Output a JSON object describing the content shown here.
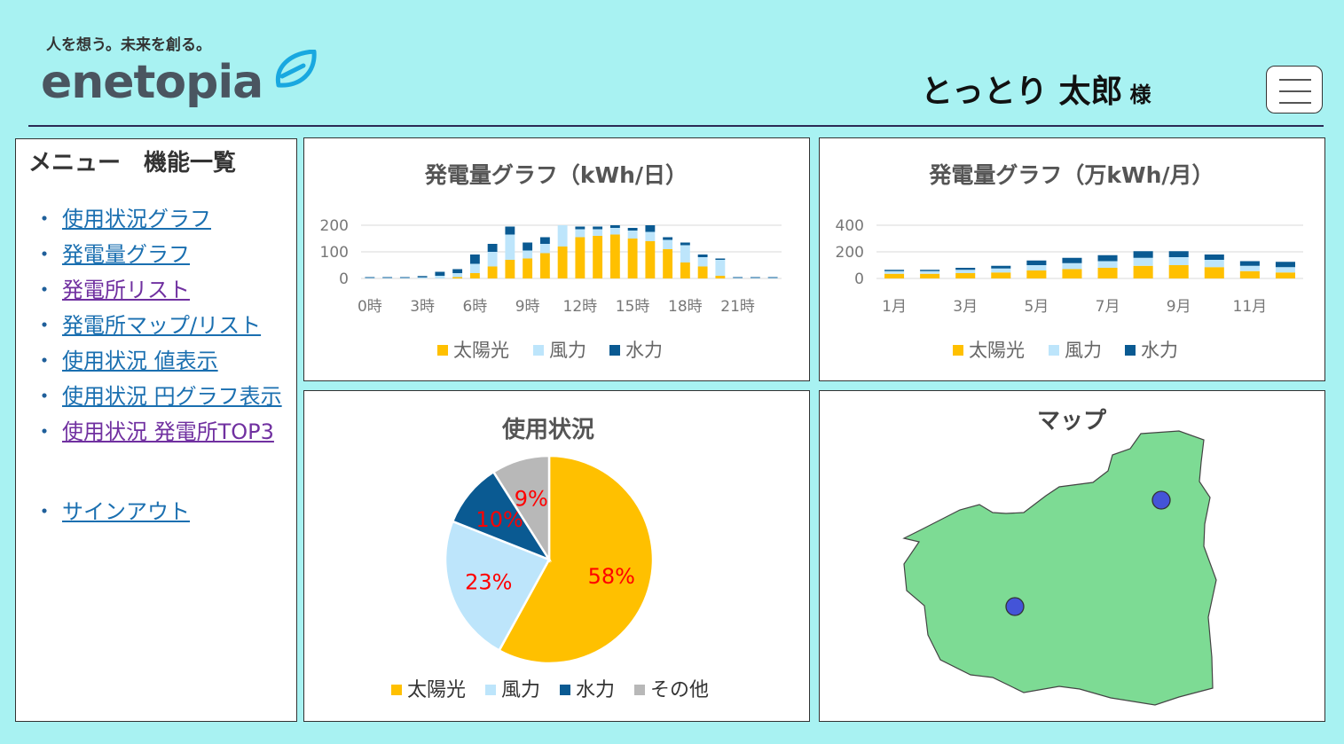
{
  "header": {
    "tagline": "人を想う。未来を創る。",
    "logo": "enetopia",
    "user_name": "とっとり 太郎",
    "user_suffix": "様",
    "menu_icon": "hamburger-icon"
  },
  "sidebar": {
    "title": "メニュー　機能一覧",
    "bullet": "・",
    "items": [
      {
        "label": "使用状況グラフ",
        "color": "#1a6fb0"
      },
      {
        "label": "発電量グラフ",
        "color": "#1a6fb0"
      },
      {
        "label": "発電所リスト",
        "color": "#7030a0"
      },
      {
        "label": "発電所マップ/リスト",
        "color": "#1a6fb0"
      },
      {
        "label": "使用状況 値表示",
        "color": "#1a6fb0"
      },
      {
        "label": "使用状況 円グラフ表示",
        "color": "#1a6fb0"
      },
      {
        "label": "使用状況 発電所TOP3",
        "color": "#7030a0"
      }
    ],
    "signout": "サインアウト"
  },
  "colors": {
    "solar": "#ffc000",
    "wind": "#bde5fb",
    "hydro": "#0a5a92",
    "other": "#b8b8b8",
    "map_fill": "#7ddb94",
    "map_marker": "#4454d8",
    "pct": "#ff0000"
  },
  "chart_data": [
    {
      "type": "bar",
      "stacked": true,
      "title": "発電量グラフ（kWh/日）",
      "categories": [
        "0時",
        "1時",
        "2時",
        "3時",
        "4時",
        "5時",
        "6時",
        "7時",
        "8時",
        "9時",
        "10時",
        "11時",
        "12時",
        "13時",
        "14時",
        "15時",
        "16時",
        "17時",
        "18時",
        "19時",
        "20時",
        "21時",
        "22時",
        "23時"
      ],
      "tick_labels": [
        "0時",
        "3時",
        "6時",
        "9時",
        "12時",
        "15時",
        "18時",
        "21時"
      ],
      "series": [
        {
          "name": "太陽光",
          "values": [
            0,
            0,
            0,
            0,
            0,
            5,
            20,
            45,
            70,
            75,
            95,
            120,
            155,
            160,
            165,
            150,
            140,
            110,
            60,
            45,
            10,
            0,
            0,
            0
          ]
        },
        {
          "name": "風力",
          "values": [
            2,
            2,
            2,
            4,
            10,
            15,
            35,
            55,
            95,
            30,
            35,
            80,
            30,
            25,
            25,
            30,
            35,
            35,
            65,
            35,
            60,
            2,
            2,
            2
          ]
        },
        {
          "name": "水力",
          "values": [
            3,
            3,
            3,
            5,
            15,
            15,
            35,
            30,
            30,
            30,
            25,
            0,
            10,
            10,
            10,
            10,
            25,
            10,
            10,
            10,
            5,
            3,
            3,
            3
          ]
        }
      ],
      "ylim": [
        0,
        200
      ],
      "yticks": [
        0,
        100,
        200
      ],
      "legend": "bottom",
      "grid": true
    },
    {
      "type": "bar",
      "stacked": true,
      "title": "発電量グラフ（万kWh/月）",
      "categories": [
        "1月",
        "2月",
        "3月",
        "4月",
        "5月",
        "6月",
        "7月",
        "8月",
        "9月",
        "10月",
        "11月",
        "12月"
      ],
      "tick_labels": [
        "1月",
        "3月",
        "5月",
        "7月",
        "9月",
        "11月"
      ],
      "series": [
        {
          "name": "太陽光",
          "values": [
            35,
            35,
            40,
            45,
            60,
            70,
            80,
            95,
            100,
            85,
            55,
            45
          ]
        },
        {
          "name": "風力",
          "values": [
            20,
            20,
            25,
            30,
            40,
            45,
            50,
            60,
            60,
            55,
            40,
            40
          ]
        },
        {
          "name": "水力",
          "values": [
            10,
            10,
            15,
            20,
            35,
            40,
            45,
            50,
            45,
            40,
            35,
            40
          ]
        }
      ],
      "ylim": [
        0,
        400
      ],
      "yticks": [
        0,
        200,
        400
      ],
      "legend": "bottom",
      "grid": true
    },
    {
      "type": "pie",
      "title": "使用状況",
      "slices": [
        {
          "name": "太陽光",
          "value": 58,
          "label": "58%"
        },
        {
          "name": "風力",
          "value": 23,
          "label": "23%"
        },
        {
          "name": "水力",
          "value": 10,
          "label": "10%"
        },
        {
          "name": "その他",
          "value": 9,
          "label": "9%"
        }
      ],
      "legend": "bottom"
    }
  ],
  "map": {
    "title": "マップ",
    "markers": [
      "plant-marker-north",
      "plant-marker-west"
    ]
  }
}
